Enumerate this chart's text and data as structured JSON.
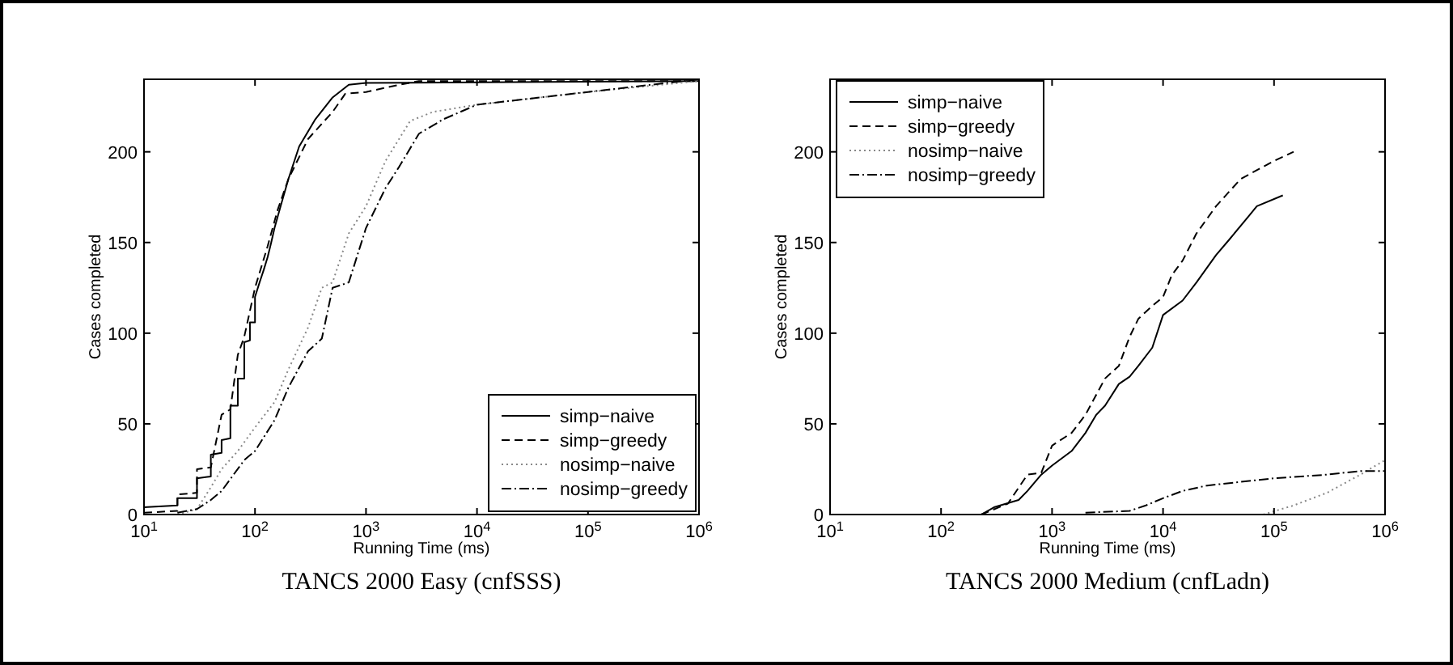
{
  "chart_data": [
    {
      "type": "line",
      "title": "TANCS 2000 Easy (cnfSSS)",
      "xlabel": "Running Time (ms)",
      "ylabel": "Cases completed",
      "log": "x",
      "legend": "bottom right",
      "grid": false,
      "xlim": [
        10,
        1000000
      ],
      "ylim": [
        0,
        240
      ],
      "xticks": [
        {
          "value": 10,
          "label": "10$^{1}$"
        },
        {
          "value": 100,
          "label": "10$^{2}$"
        },
        {
          "value": 1000,
          "label": "10$^{3}$"
        },
        {
          "value": 10000,
          "label": "10$^{4}$"
        },
        {
          "value": 100000,
          "label": "10$^{5}$"
        },
        {
          "value": 1000000,
          "label": "10$^{6}$"
        }
      ],
      "yticks": [
        0,
        50,
        100,
        150,
        200
      ],
      "series": [
        {
          "name": "simp−naive",
          "color": "#000000",
          "line_style": "solid",
          "x": [
            10,
            20,
            20,
            30,
            30,
            40,
            40,
            50,
            50,
            60,
            60,
            70,
            70,
            80,
            80,
            90,
            90,
            100,
            100,
            110,
            120,
            130,
            140,
            150,
            170,
            200,
            250,
            350,
            500,
            700,
            1000,
            1000000
          ],
          "values": [
            4,
            5,
            9,
            9,
            20,
            21,
            33,
            34,
            41,
            42,
            60,
            60,
            75,
            75,
            95,
            96,
            106,
            106,
            120,
            128,
            135,
            142,
            150,
            158,
            170,
            185,
            203,
            218,
            230,
            237,
            238,
            239
          ]
        },
        {
          "name": "simp−greedy",
          "color": "#000000",
          "line_style": "dashed",
          "x": [
            10,
            20,
            20,
            30,
            30,
            40,
            50,
            60,
            70,
            80,
            100,
            130,
            160,
            200,
            300,
            500,
            650,
            1000,
            2000,
            3000,
            1000000
          ],
          "values": [
            1,
            2,
            11,
            12,
            25,
            26,
            55,
            58,
            88,
            98,
            125,
            148,
            168,
            185,
            207,
            222,
            232,
            233,
            237,
            239,
            239
          ]
        },
        {
          "name": "nosimp−naive",
          "color": "#888888",
          "line_style": "dotted",
          "x": [
            20,
            30,
            40,
            50,
            70,
            100,
            150,
            200,
            300,
            400,
            500,
            700,
            1000,
            1500,
            2500,
            4000,
            10000,
            100000,
            1000000
          ],
          "values": [
            0,
            3,
            15,
            25,
            35,
            48,
            62,
            80,
            103,
            125,
            128,
            155,
            170,
            195,
            217,
            222,
            226,
            233,
            239
          ]
        },
        {
          "name": "nosimp−greedy",
          "color": "#000000",
          "line_style": "dashdot",
          "x": [
            20,
            30,
            40,
            50,
            80,
            100,
            150,
            200,
            300,
            400,
            500,
            700,
            1000,
            1500,
            2000,
            3000,
            5000,
            10000,
            100000,
            1000000
          ],
          "values": [
            1,
            3,
            8,
            13,
            30,
            35,
            52,
            70,
            90,
            97,
            125,
            128,
            158,
            180,
            192,
            210,
            218,
            226,
            233,
            240
          ]
        }
      ]
    },
    {
      "type": "line",
      "title": "TANCS 2000 Medium (cnfLadn)",
      "xlabel": "Running Time (ms)",
      "ylabel": "Cases completed",
      "log": "x",
      "legend": "top left",
      "grid": false,
      "xlim": [
        10,
        1000000
      ],
      "ylim": [
        0,
        240
      ],
      "xticks": [
        {
          "value": 10,
          "label": "10$^{1}$"
        },
        {
          "value": 100,
          "label": "10$^{2}$"
        },
        {
          "value": 1000,
          "label": "10$^{3}$"
        },
        {
          "value": 10000,
          "label": "10$^{4}$"
        },
        {
          "value": 100000,
          "label": "10$^{5}$"
        },
        {
          "value": 1000000,
          "label": "10$^{6}$"
        }
      ],
      "yticks": [
        0,
        50,
        100,
        150,
        200
      ],
      "series": [
        {
          "name": "simp−naive",
          "color": "#000000",
          "line_style": "solid",
          "x": [
            230,
            300,
            500,
            600,
            800,
            1000,
            1500,
            2000,
            2500,
            3000,
            4000,
            5000,
            6000,
            8000,
            10000,
            15000,
            20000,
            30000,
            40000,
            60000,
            70000,
            120000
          ],
          "values": [
            0,
            4,
            8,
            13,
            22,
            27,
            35,
            45,
            55,
            60,
            72,
            76,
            82,
            92,
            110,
            118,
            128,
            143,
            152,
            165,
            170,
            176
          ]
        },
        {
          "name": "simp−greedy",
          "color": "#000000",
          "line_style": "dashed",
          "x": [
            230,
            400,
            600,
            800,
            1000,
            1500,
            2000,
            3000,
            4000,
            5000,
            6000,
            8000,
            10000,
            12000,
            15000,
            20000,
            30000,
            50000,
            100000,
            150000
          ],
          "values": [
            0,
            6,
            22,
            23,
            38,
            45,
            55,
            75,
            82,
            98,
            108,
            115,
            120,
            132,
            140,
            155,
            170,
            185,
            195,
            200
          ]
        },
        {
          "name": "nosimp−naive",
          "color": "#888888",
          "line_style": "dotted",
          "x": [
            80000,
            150000,
            300000,
            600000,
            1000000
          ],
          "values": [
            0,
            5,
            12,
            22,
            30
          ]
        },
        {
          "name": "nosimp−greedy",
          "color": "#000000",
          "line_style": "dashdot",
          "x": [
            2000,
            5000,
            7000,
            10000,
            15000,
            25000,
            50000,
            100000,
            300000,
            600000,
            1000000
          ],
          "values": [
            1,
            2,
            5,
            9,
            13,
            16,
            18,
            20,
            22,
            24,
            24
          ]
        }
      ]
    }
  ]
}
